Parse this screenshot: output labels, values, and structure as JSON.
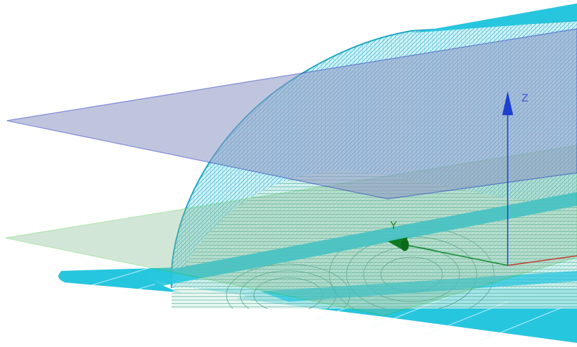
{
  "axes": {
    "z_label": "Z",
    "y_label": "Y",
    "z_color": "#1f3fd0",
    "y_color": "#118a2a",
    "x_color": "#c0392b"
  },
  "colors": {
    "flange_fill": "#27c6df",
    "mesh_line": "#1aa7c4",
    "mesh_fill": "#9fe4ee",
    "upper_plane_fill": "#8e96c4",
    "upper_plane_edge": "#2a3bbf",
    "lower_plane_fill": "#7fb98f",
    "lower_plane_edge": "#2fbf2f",
    "contour_line": "#4a9e8a"
  },
  "scene": {
    "description_icons": [
      "surface-mesh",
      "cutting-plane-upper",
      "cutting-plane-lower",
      "coordinate-triad"
    ]
  }
}
